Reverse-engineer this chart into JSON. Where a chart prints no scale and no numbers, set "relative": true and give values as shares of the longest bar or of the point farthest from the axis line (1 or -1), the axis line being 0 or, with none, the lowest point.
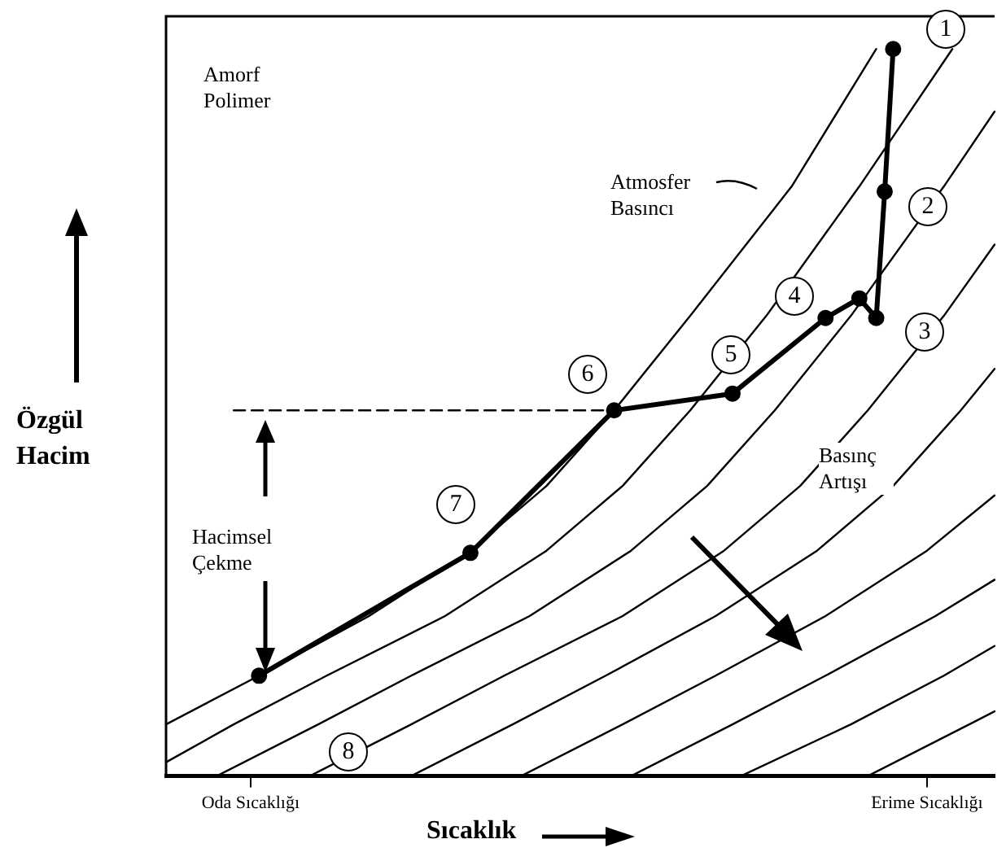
{
  "chart_data": {
    "type": "line",
    "relative": true,
    "xlabel": "Sıcaklık",
    "ylabel": "Özgül Hacim",
    "legend": false,
    "categories": [
      null,
      null,
      null,
      null,
      null,
      null,
      null,
      null,
      null,
      null,
      "Oda Sıcaklığı",
      null,
      null,
      null,
      null,
      null,
      null,
      null,
      null,
      null,
      null,
      null,
      null,
      null,
      null,
      null,
      null,
      null,
      null,
      null,
      null,
      null,
      null,
      null,
      null,
      null,
      null,
      null,
      null,
      null,
      null,
      null,
      null,
      null,
      null,
      null,
      null,
      null,
      null,
      null,
      null,
      null,
      null,
      null,
      null,
      null,
      null,
      null,
      null,
      null,
      null,
      null,
      null,
      null,
      null,
      null,
      null,
      null,
      null,
      null,
      null,
      null,
      null,
      null,
      null,
      null,
      null,
      null,
      null,
      null,
      null,
      null,
      null,
      null,
      null,
      null,
      null,
      null,
      null,
      null,
      "Erime Sıcaklığı",
      null,
      null,
      null,
      null,
      null,
      null,
      null,
      null
    ],
    "series": [
      {
        "color": "#000000",
        "marker": "none",
        "values": [
          0.071,
          null,
          null,
          null,
          null,
          null,
          null,
          null,
          null,
          null,
          null,
          0.138,
          null,
          null,
          null,
          null,
          null,
          null,
          null,
          null,
          null,
          null,
          null,
          null,
          0.22,
          null,
          null,
          null,
          null,
          null,
          null,
          null,
          null,
          null,
          null,
          null,
          0.31,
          null,
          null,
          null,
          null,
          null,
          null,
          null,
          null,
          0.399,
          null,
          null,
          null,
          null,
          null,
          null,
          null,
          0.503,
          null,
          null,
          null,
          null,
          null,
          null,
          null,
          null,
          0.633,
          null,
          null,
          null,
          null,
          null,
          null,
          null,
          null,
          null,
          null,
          null,
          0.811,
          null,
          null,
          null,
          null,
          null,
          null,
          null,
          null,
          null,
          1.0,
          null,
          null,
          null,
          null,
          null,
          null,
          null,
          null,
          null,
          null,
          null,
          null,
          null,
          null
        ]
      },
      {
        "color": "#000000",
        "marker": "none",
        "values": [
          0.019,
          null,
          null,
          null,
          null,
          null,
          null,
          null,
          0.071,
          null,
          null,
          null,
          null,
          null,
          null,
          null,
          null,
          null,
          null,
          0.138,
          null,
          null,
          null,
          null,
          null,
          null,
          null,
          null,
          null,
          null,
          null,
          null,
          null,
          0.22,
          null,
          null,
          null,
          null,
          null,
          null,
          null,
          null,
          null,
          null,
          null,
          0.31,
          null,
          null,
          null,
          null,
          null,
          null,
          null,
          null,
          0.399,
          null,
          null,
          null,
          null,
          null,
          null,
          null,
          0.503,
          null,
          null,
          null,
          null,
          null,
          null,
          null,
          null,
          0.633,
          null,
          null,
          null,
          null,
          null,
          null,
          null,
          null,
          null,
          null,
          0.811,
          null,
          null,
          null,
          null,
          null,
          null,
          null,
          null,
          null,
          null,
          1.0,
          null,
          null,
          null,
          null,
          null
        ]
      },
      {
        "color": "#000000",
        "marker": "none",
        "values": [
          null,
          null,
          null,
          null,
          null,
          null,
          0,
          null,
          null,
          null,
          null,
          null,
          null,
          null,
          null,
          null,
          null,
          null,
          0.071,
          null,
          null,
          null,
          null,
          null,
          null,
          null,
          null,
          null,
          null,
          0.138,
          null,
          null,
          null,
          null,
          null,
          null,
          null,
          null,
          null,
          null,
          null,
          null,
          null,
          0.22,
          null,
          null,
          null,
          null,
          null,
          null,
          null,
          null,
          null,
          null,
          null,
          0.31,
          null,
          null,
          null,
          null,
          null,
          null,
          null,
          null,
          0.399,
          null,
          null,
          null,
          null,
          null,
          null,
          null,
          0.503,
          null,
          null,
          null,
          null,
          null,
          null,
          null,
          null,
          0.633,
          null,
          null,
          null,
          null,
          null,
          null,
          null,
          null,
          null,
          null,
          0.811,
          null,
          null,
          null,
          null,
          null,
          0.914
        ]
      },
      {
        "color": "#000000",
        "marker": "none",
        "values": [
          null,
          null,
          null,
          null,
          null,
          null,
          null,
          null,
          null,
          null,
          null,
          null,
          null,
          null,
          null,
          null,
          null,
          0,
          null,
          null,
          null,
          null,
          null,
          null,
          null,
          null,
          null,
          null,
          null,
          0.071,
          null,
          null,
          null,
          null,
          null,
          null,
          null,
          null,
          null,
          null,
          0.138,
          null,
          null,
          null,
          null,
          null,
          null,
          null,
          null,
          null,
          null,
          null,
          null,
          null,
          0.22,
          null,
          null,
          null,
          null,
          null,
          null,
          null,
          null,
          null,
          null,
          null,
          0.31,
          null,
          null,
          null,
          null,
          null,
          null,
          null,
          null,
          0.399,
          null,
          null,
          null,
          null,
          null,
          null,
          null,
          0.503,
          null,
          null,
          null,
          null,
          null,
          null,
          null,
          null,
          0.633,
          null,
          null,
          null,
          null,
          null,
          0.731
        ]
      },
      {
        "color": "#000000",
        "marker": "none",
        "values": [
          null,
          null,
          null,
          null,
          null,
          null,
          null,
          null,
          null,
          null,
          null,
          null,
          null,
          null,
          null,
          null,
          null,
          null,
          null,
          null,
          null,
          null,
          null,
          null,
          null,
          null,
          null,
          null,
          null,
          0,
          null,
          null,
          null,
          null,
          null,
          null,
          null,
          null,
          null,
          null,
          null,
          0.071,
          null,
          null,
          null,
          null,
          null,
          null,
          null,
          null,
          null,
          null,
          0.138,
          null,
          null,
          null,
          null,
          null,
          null,
          null,
          null,
          null,
          null,
          null,
          null,
          0.22,
          null,
          null,
          null,
          null,
          null,
          null,
          null,
          null,
          null,
          null,
          null,
          0.31,
          null,
          null,
          null,
          null,
          null,
          null,
          null,
          null,
          0.399,
          null,
          null,
          null,
          null,
          null,
          null,
          null,
          0.503,
          null,
          null,
          null,
          0.56
        ]
      },
      {
        "color": "#000000",
        "marker": "none",
        "values": [
          null,
          null,
          null,
          null,
          null,
          null,
          null,
          null,
          null,
          null,
          null,
          null,
          null,
          null,
          null,
          null,
          null,
          null,
          null,
          null,
          null,
          null,
          null,
          null,
          null,
          null,
          null,
          null,
          null,
          null,
          null,
          null,
          null,
          null,
          null,
          null,
          null,
          null,
          null,
          null,
          null,
          null,
          0,
          null,
          null,
          null,
          null,
          null,
          null,
          null,
          null,
          null,
          null,
          null,
          0.071,
          null,
          null,
          null,
          null,
          null,
          null,
          null,
          null,
          null,
          null,
          0.138,
          null,
          null,
          null,
          null,
          null,
          null,
          null,
          null,
          null,
          null,
          null,
          null,
          0.22,
          null,
          null,
          null,
          null,
          null,
          null,
          null,
          null,
          null,
          null,
          null,
          0.31,
          null,
          null,
          null,
          null,
          null,
          null,
          null,
          0.386
        ]
      },
      {
        "color": "#000000",
        "marker": "none",
        "values": [
          null,
          null,
          null,
          null,
          null,
          null,
          null,
          null,
          null,
          null,
          null,
          null,
          null,
          null,
          null,
          null,
          null,
          null,
          null,
          null,
          null,
          null,
          null,
          null,
          null,
          null,
          null,
          null,
          null,
          null,
          null,
          null,
          null,
          null,
          null,
          null,
          null,
          null,
          null,
          null,
          null,
          null,
          null,
          null,
          null,
          null,
          null,
          null,
          null,
          null,
          null,
          null,
          null,
          null,
          null,
          0,
          null,
          null,
          null,
          null,
          null,
          null,
          null,
          null,
          null,
          null,
          null,
          0.071,
          null,
          null,
          null,
          null,
          null,
          null,
          null,
          null,
          null,
          null,
          0.138,
          null,
          null,
          null,
          null,
          null,
          null,
          null,
          null,
          null,
          null,
          null,
          null,
          0.22,
          null,
          null,
          null,
          null,
          null,
          null,
          0.27
        ]
      },
      {
        "color": "#000000",
        "marker": "none",
        "values": [
          null,
          null,
          null,
          null,
          null,
          null,
          null,
          null,
          null,
          null,
          null,
          null,
          null,
          null,
          null,
          null,
          null,
          null,
          null,
          null,
          null,
          null,
          null,
          null,
          null,
          null,
          null,
          null,
          null,
          null,
          null,
          null,
          null,
          null,
          null,
          null,
          null,
          null,
          null,
          null,
          null,
          null,
          null,
          null,
          null,
          null,
          null,
          null,
          null,
          null,
          null,
          null,
          null,
          null,
          null,
          null,
          null,
          null,
          null,
          null,
          null,
          null,
          null,
          null,
          null,
          null,
          null,
          null,
          0,
          null,
          null,
          null,
          null,
          null,
          null,
          null,
          null,
          null,
          null,
          null,
          null,
          0.071,
          null,
          null,
          null,
          null,
          null,
          null,
          null,
          null,
          null,
          null,
          0.138,
          null,
          null,
          null,
          null,
          null,
          0.179
        ]
      },
      {
        "color": "#000000",
        "marker": "none",
        "values": [
          null,
          null,
          null,
          null,
          null,
          null,
          null,
          null,
          null,
          null,
          null,
          null,
          null,
          null,
          null,
          null,
          null,
          null,
          null,
          null,
          null,
          null,
          null,
          null,
          null,
          null,
          null,
          null,
          null,
          null,
          null,
          null,
          null,
          null,
          null,
          null,
          null,
          null,
          null,
          null,
          null,
          null,
          null,
          null,
          null,
          null,
          null,
          null,
          null,
          null,
          null,
          null,
          null,
          null,
          null,
          null,
          null,
          null,
          null,
          null,
          null,
          null,
          null,
          null,
          null,
          null,
          null,
          null,
          null,
          null,
          null,
          null,
          null,
          null,
          null,
          null,
          null,
          null,
          null,
          null,
          null,
          null,
          null,
          0,
          null,
          null,
          null,
          null,
          null,
          null,
          null,
          null,
          null,
          null,
          null,
          0.071,
          null,
          null,
          0.089
        ]
      },
      {
        "color": "#000000",
        "marker": "none",
        "line_style": "dashed",
        "values": [
          null,
          null,
          null,
          null,
          null,
          null,
          null,
          null,
          0.503,
          null,
          null,
          null,
          null,
          null,
          null,
          null,
          null,
          null,
          null,
          null,
          null,
          null,
          null,
          null,
          null,
          null,
          null,
          null,
          null,
          null,
          null,
          null,
          null,
          null,
          null,
          null,
          null,
          null,
          null,
          null,
          null,
          null,
          null,
          null,
          null,
          null,
          null,
          null,
          null,
          null,
          null,
          null,
          null,
          0.503,
          null,
          null,
          null,
          null,
          null,
          null,
          null,
          null,
          null,
          null,
          null,
          null,
          null,
          null,
          null,
          null,
          null,
          null,
          null,
          null,
          null,
          null,
          null,
          null,
          null,
          null,
          null,
          null,
          null,
          null,
          null,
          null,
          null,
          null,
          null,
          null,
          null,
          null,
          null,
          null,
          null,
          null,
          null,
          null,
          null
        ]
      },
      {
        "color": "#000000",
        "marker": "circle",
        "values": [
          null,
          null,
          null,
          null,
          null,
          null,
          null,
          null,
          null,
          null,
          null,
          0.138,
          null,
          null,
          null,
          null,
          null,
          null,
          null,
          null,
          null,
          null,
          null,
          null,
          null,
          null,
          null,
          null,
          null,
          null,
          null,
          null,
          null,
          null,
          null,
          null,
          0.307,
          null,
          null,
          null,
          null,
          null,
          null,
          null,
          null,
          null,
          null,
          null,
          null,
          null,
          null,
          null,
          null,
          0.503,
          null,
          null,
          null,
          null,
          null,
          null,
          null,
          null,
          null,
          null,
          null,
          null,
          null,
          0.526,
          null,
          null,
          null,
          null,
          null,
          null,
          null,
          null,
          null,
          null,
          0.63,
          null,
          null,
          null,
          0.657,
          null,
          0.63,
          0.804,
          1.0,
          null,
          null,
          null,
          null,
          null,
          null,
          null,
          null,
          null,
          null,
          null,
          null
        ]
      }
    ],
    "annotations": [
      "Amorf Polimer",
      "Atmosfer Basıncı",
      "Basınç Artışı",
      "Hacimsel Çekme",
      "1",
      "2",
      "3",
      "4",
      "5",
      "6",
      "7",
      "8"
    ]
  }
}
